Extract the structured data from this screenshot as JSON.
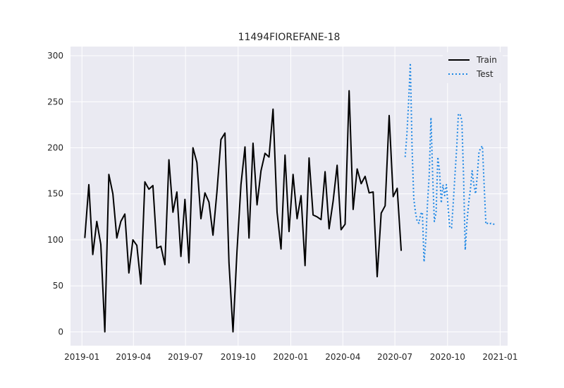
{
  "chart_data": {
    "type": "line",
    "title": "11494FIOREFANE-18",
    "xlabel": "",
    "ylabel": "",
    "xlim": [
      "2018-12-12",
      "2021-01-14"
    ],
    "ylim": [
      -15,
      310
    ],
    "xticks": [
      "2019-01-01",
      "2019-04-01",
      "2019-07-01",
      "2019-10-01",
      "2020-01-01",
      "2020-04-01",
      "2020-07-01",
      "2020-10-01",
      "2021-01-01"
    ],
    "xtick_labels": [
      "2019-01",
      "2019-04",
      "2019-07",
      "2019-10",
      "2020-01",
      "2020-04",
      "2020-07",
      "2020-10",
      "2021-01"
    ],
    "yticks": [
      0,
      50,
      100,
      150,
      200,
      250,
      300
    ],
    "ytick_labels": [
      "0",
      "50",
      "100",
      "150",
      "200",
      "250",
      "300"
    ],
    "grid": true,
    "legend_position": "top-right",
    "series": [
      {
        "name": "Train",
        "color": "#000000",
        "style": "solid",
        "x": [
          "2019-01-06",
          "2019-01-13",
          "2019-01-20",
          "2019-01-27",
          "2019-02-03",
          "2019-02-10",
          "2019-02-17",
          "2019-02-24",
          "2019-03-03",
          "2019-03-10",
          "2019-03-17",
          "2019-03-24",
          "2019-03-31",
          "2019-04-07",
          "2019-04-14",
          "2019-04-21",
          "2019-04-28",
          "2019-05-05",
          "2019-05-12",
          "2019-05-19",
          "2019-05-26",
          "2019-06-02",
          "2019-06-09",
          "2019-06-16",
          "2019-06-23",
          "2019-06-30",
          "2019-07-07",
          "2019-07-14",
          "2019-07-21",
          "2019-07-28",
          "2019-08-04",
          "2019-08-11",
          "2019-08-18",
          "2019-08-25",
          "2019-09-01",
          "2019-09-08",
          "2019-09-15",
          "2019-09-22",
          "2019-09-29",
          "2019-10-06",
          "2019-10-13",
          "2019-10-20",
          "2019-10-27",
          "2019-11-03",
          "2019-11-10",
          "2019-11-17",
          "2019-11-24",
          "2019-12-01",
          "2019-12-08",
          "2019-12-15",
          "2019-12-22",
          "2019-12-29",
          "2020-01-05",
          "2020-01-12",
          "2020-01-19",
          "2020-01-26",
          "2020-02-02",
          "2020-02-09",
          "2020-02-16",
          "2020-02-23",
          "2020-03-01",
          "2020-03-08",
          "2020-03-15",
          "2020-03-22",
          "2020-03-29",
          "2020-04-05",
          "2020-04-12",
          "2020-04-19",
          "2020-04-26",
          "2020-05-03",
          "2020-05-10",
          "2020-05-17",
          "2020-05-24",
          "2020-05-31",
          "2020-06-07",
          "2020-06-14",
          "2020-06-21",
          "2020-06-28",
          "2020-07-05",
          "2020-07-12"
        ],
        "y": [
          102,
          160,
          84,
          120,
          95,
          0,
          171,
          150,
          102,
          120,
          128,
          64,
          100,
          94,
          52,
          163,
          155,
          159,
          91,
          93,
          73,
          187,
          130,
          152,
          82,
          144,
          75,
          200,
          184,
          123,
          151,
          141,
          105,
          152,
          209,
          216,
          75,
          0,
          88,
          160,
          201,
          102,
          205,
          138,
          175,
          194,
          190,
          242,
          130,
          90,
          192,
          109,
          171,
          123,
          148,
          72,
          189,
          127,
          125,
          122,
          174,
          112,
          142,
          181,
          111,
          117,
          262,
          133,
          177,
          161,
          169,
          151,
          152,
          60,
          129,
          137,
          235,
          147,
          156,
          88
        ]
      },
      {
        "name": "Test",
        "color": "#1e88e5",
        "style": "dotted",
        "x": [
          "2020-07-19",
          "2020-07-22",
          "2020-07-25",
          "2020-07-28",
          "2020-07-31",
          "2020-08-03",
          "2020-08-06",
          "2020-08-09",
          "2020-08-12",
          "2020-08-15",
          "2020-08-18",
          "2020-08-21",
          "2020-08-24",
          "2020-08-27",
          "2020-08-30",
          "2020-09-02",
          "2020-09-05",
          "2020-09-08",
          "2020-09-11",
          "2020-09-14",
          "2020-09-17",
          "2020-09-20",
          "2020-09-23",
          "2020-09-26",
          "2020-09-29",
          "2020-10-02",
          "2020-10-05",
          "2020-10-08",
          "2020-10-11",
          "2020-10-14",
          "2020-10-17",
          "2020-10-20",
          "2020-10-23",
          "2020-10-26",
          "2020-10-29",
          "2020-11-01",
          "2020-11-04",
          "2020-11-07",
          "2020-11-10",
          "2020-11-13",
          "2020-11-16",
          "2020-11-19",
          "2020-11-22",
          "2020-11-25",
          "2020-11-28",
          "2020-12-01",
          "2020-12-04",
          "2020-12-07",
          "2020-12-10",
          "2020-12-13",
          "2020-12-16",
          "2020-12-19",
          "2020-12-22"
        ],
        "y": [
          190,
          215,
          250,
          292,
          200,
          145,
          130,
          120,
          118,
          128,
          130,
          76,
          100,
          140,
          170,
          233,
          170,
          120,
          130,
          190,
          175,
          140,
          160,
          148,
          160,
          135,
          113,
          113,
          140,
          170,
          200,
          237,
          236,
          230,
          170,
          89,
          120,
          140,
          155,
          175,
          160,
          150,
          170,
          195,
          200,
          202,
          160,
          117,
          118,
          117,
          118,
          117,
          117
        ]
      }
    ]
  }
}
